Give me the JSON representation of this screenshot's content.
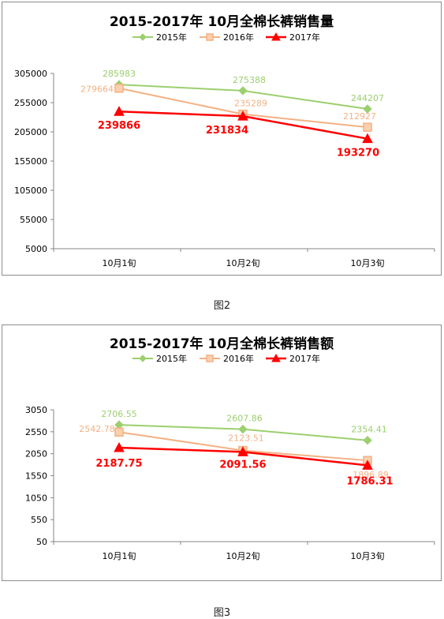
{
  "figures": [
    {
      "caption": "图2"
    },
    {
      "caption": "图3"
    }
  ],
  "chart_data": [
    {
      "type": "line",
      "title": "2015-2017年 10月全棉长裤销售量",
      "categories": [
        "10月1旬",
        "10月2旬",
        "10月3旬"
      ],
      "ylim": [
        5000,
        305000
      ],
      "yticks": [
        "305000",
        "255000",
        "205000",
        "155000",
        "105000",
        "55000",
        "5000"
      ],
      "ytick_values": [
        305000,
        255000,
        205000,
        155000,
        105000,
        55000,
        5000
      ],
      "legend_position": "top",
      "grid": false,
      "series": [
        {
          "name": "2015年",
          "color": "#9ccf6e",
          "marker": "diamond",
          "values": [
            285983,
            275388,
            244207
          ],
          "labels": [
            "285983",
            "275388",
            "244207"
          ]
        },
        {
          "name": "2016年",
          "color": "#f4b183",
          "marker": "square",
          "values": [
            279664,
            235289,
            212927
          ],
          "labels": [
            "279664",
            "235289",
            "212927"
          ]
        },
        {
          "name": "2017年",
          "color": "#ff0000",
          "marker": "triangle",
          "values": [
            239866,
            231834,
            193270
          ],
          "labels": [
            "239866",
            "231834",
            "193270"
          ]
        }
      ]
    },
    {
      "type": "line",
      "title": "2015-2017年  10月全棉长裤销售额",
      "categories": [
        "10月1旬",
        "10月2旬",
        "10月3旬"
      ],
      "ylim": [
        50,
        3050
      ],
      "yticks": [
        "3050",
        "2550",
        "2050",
        "1550",
        "1050",
        "550",
        "50"
      ],
      "ytick_values": [
        3050,
        2550,
        2050,
        1550,
        1050,
        550,
        50
      ],
      "legend_position": "top",
      "grid": false,
      "series": [
        {
          "name": "2015年",
          "color": "#9ccf6e",
          "marker": "diamond",
          "values": [
            2706.55,
            2607.86,
            2354.41
          ],
          "labels": [
            "2706.55",
            "2607.86",
            "2354.41"
          ]
        },
        {
          "name": "2016年",
          "color": "#f4b183",
          "marker": "square",
          "values": [
            2542.78,
            2123.51,
            1896.89
          ],
          "labels": [
            "2542.78",
            "2123.51",
            "1896.89"
          ]
        },
        {
          "name": "2017年",
          "color": "#ff0000",
          "marker": "triangle",
          "values": [
            2187.75,
            2091.56,
            1786.31
          ],
          "labels": [
            "2187.75",
            "2091.56",
            "1786.31"
          ]
        }
      ]
    }
  ]
}
